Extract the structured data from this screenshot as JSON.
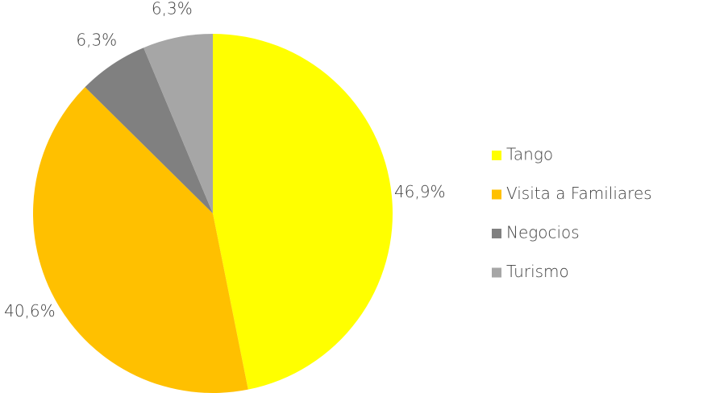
{
  "chart_data": {
    "type": "pie",
    "categories": [
      "Tango",
      "Visita a Familiares",
      "Negocios",
      "Turismo"
    ],
    "values": [
      46.9,
      40.6,
      6.3,
      6.3
    ],
    "value_labels": [
      "46,9%",
      "40,6%",
      "6,3%",
      "6,3%"
    ],
    "colors": [
      "#FFFF00",
      "#FFC000",
      "#808080",
      "#A6A6A6"
    ],
    "legend": "right"
  }
}
